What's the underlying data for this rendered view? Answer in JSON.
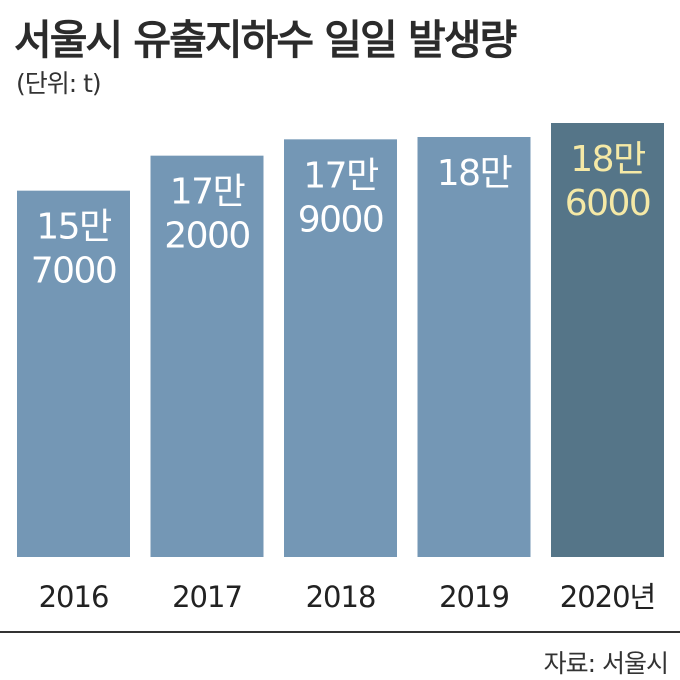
{
  "chart_data": {
    "type": "bar",
    "title": "서울시 유출지하수 일일 발생량",
    "unit_label": "(단위: t)",
    "categories": [
      "2016",
      "2017",
      "2018",
      "2019",
      "2020년"
    ],
    "values": [
      157000,
      172000,
      179000,
      180000,
      186000
    ],
    "data_labels": [
      [
        "15만",
        "7000"
      ],
      [
        "17만",
        "2000"
      ],
      [
        "17만",
        "9000"
      ],
      [
        "18만"
      ],
      [
        "18만",
        "6000"
      ]
    ],
    "ylim": [
      0,
      200000
    ],
    "grid": false,
    "legend": "none",
    "highlight_index": 4,
    "colors": {
      "bar": "#7497b5",
      "bar_highlight": "#557588",
      "label": "#ffffff",
      "label_highlight": "#f5e9a6",
      "axis_text": "#222222"
    }
  },
  "source": "자료: 서울시"
}
